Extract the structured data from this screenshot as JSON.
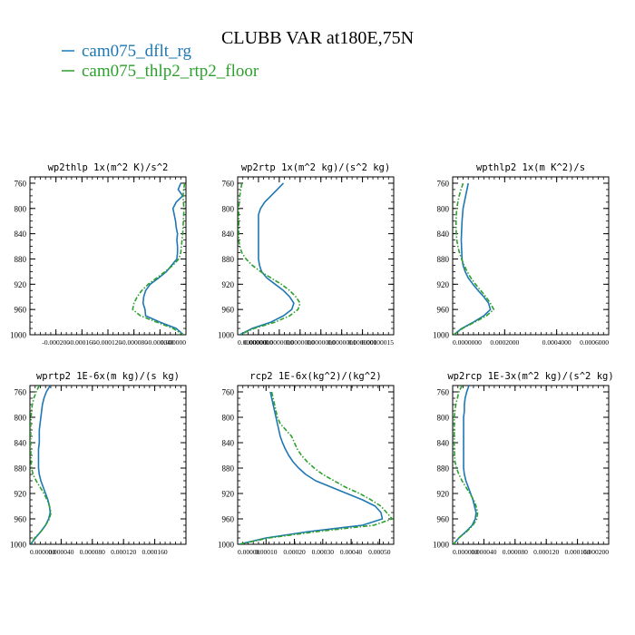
{
  "title": "CLUBB VAR at180E,75N",
  "legend": [
    {
      "name": "cam075_dflt_rg",
      "color": "#1f77b4"
    },
    {
      "name": "cam075_thlp2_rtp2_floor",
      "color": "#2ca02c"
    }
  ],
  "chart_data": [
    {
      "type": "line",
      "title": "wp2thlp   1x(m^2 K)/s^2",
      "xlim": [
        -0.00024,
        0.0
      ],
      "xticks": [
        -0.0002,
        -0.00016,
        -0.00012,
        -8e-05,
        -4e-05,
        0.0
      ],
      "xtick_labels": [
        "-0.000200",
        "-0.000160",
        "-0.000120",
        "-0.000080",
        "-0.000040",
        "0.000000"
      ],
      "ylim": [
        1000,
        750
      ],
      "yticks": [
        760,
        800,
        840,
        880,
        920,
        960,
        1000
      ],
      "grid": false,
      "y": [
        760,
        770,
        780,
        790,
        800,
        810,
        820,
        830,
        840,
        850,
        860,
        870,
        880,
        890,
        900,
        910,
        920,
        930,
        940,
        950,
        960,
        970,
        980,
        990,
        1000
      ],
      "series": [
        {
          "name": "cam075_dflt_rg",
          "color": "#1f77b4",
          "dash": "",
          "values": [
            -8e-06,
            -1.2e-05,
            -5e-06,
            -1.5e-05,
            -2e-05,
            -1.8e-05,
            -1.6e-05,
            -1.5e-05,
            -1.3e-05,
            -1.4e-05,
            -1.3e-05,
            -1.3e-05,
            -1.4e-05,
            -2.2e-05,
            -3e-05,
            -4.2e-05,
            -5.5e-05,
            -6.2e-05,
            -6.5e-05,
            -6.6e-05,
            -6.3e-05,
            -6.2e-05,
            -4e-05,
            -1.5e-05,
            -4e-06
          ]
        },
        {
          "name": "cam075_thlp2_rtp2_floor",
          "color": "#2ca02c",
          "dash": "5 2 1.5 2",
          "values": [
            -2e-06,
            -3.5e-06,
            -4.5e-06,
            -4e-06,
            -3e-06,
            -3.5e-06,
            -4e-06,
            -4.5e-06,
            -5e-06,
            -6e-06,
            -7e-06,
            -8e-06,
            -1.1e-05,
            -2e-05,
            -3.2e-05,
            -4.5e-05,
            -5.8e-05,
            -6.8e-05,
            -7.5e-05,
            -8e-05,
            -8.2e-05,
            -7e-05,
            -4.5e-05,
            -2e-05,
            -4e-06
          ]
        }
      ]
    },
    {
      "type": "line",
      "title": "wp2rtp   1x(m^2 kg)/(s^2 kg)",
      "xlim": [
        0.0,
        1.5e-07
      ],
      "xticks": [
        0.0,
        2e-08,
        4e-08,
        6e-08,
        8e-08,
        1e-07,
        1.2e-07,
        1.5e-07
      ],
      "xtick_labels": [
        "0.0000000",
        "0.0000000",
        "0.0000000",
        "0.0000000",
        "0.0000000",
        "0.0000001",
        "0.0000001",
        "0.00000015"
      ],
      "ylim": [
        1000,
        750
      ],
      "yticks": [
        760,
        800,
        840,
        880,
        920,
        960,
        1000
      ],
      "grid": false,
      "y": [
        760,
        770,
        780,
        790,
        800,
        810,
        820,
        830,
        840,
        850,
        860,
        870,
        880,
        890,
        900,
        910,
        920,
        930,
        940,
        950,
        960,
        970,
        980,
        990,
        1000
      ],
      "series": [
        {
          "name": "cam075_dflt_rg",
          "color": "#1f77b4",
          "dash": "",
          "values": [
            4.4e-08,
            3.8e-08,
            3.2e-08,
            2.6e-08,
            2.2e-08,
            2e-08,
            2e-08,
            2e-08,
            2e-08,
            2e-08,
            2e-08,
            2e-08,
            2e-08,
            2.1e-08,
            2.3e-08,
            2.8e-08,
            3.6e-08,
            4.4e-08,
            5e-08,
            5.4e-08,
            5.2e-08,
            4.4e-08,
            3.2e-08,
            1.4e-08,
            2e-09
          ]
        },
        {
          "name": "cam075_thlp2_rtp2_floor",
          "color": "#2ca02c",
          "dash": "5 2 1.5 2",
          "values": [
            4e-09,
            3e-09,
            2e-09,
            1.5e-09,
            1e-09,
            1e-09,
            1e-09,
            1e-09,
            1e-09,
            1e-09,
            2e-09,
            4e-09,
            8e-09,
            1.4e-08,
            2.2e-08,
            3.2e-08,
            4.2e-08,
            5e-08,
            5.6e-08,
            6e-08,
            5.8e-08,
            5e-08,
            3.6e-08,
            1.6e-08,
            2e-09
          ]
        }
      ]
    },
    {
      "type": "line",
      "title": "wpthlp2   1x(m K^2)/s",
      "xlim": [
        0.0,
        0.0006
      ],
      "xticks": [
        0.0,
        0.0002,
        0.0004,
        0.0006
      ],
      "xtick_labels": [
        "0.0000000",
        "0.0002000",
        "0.0004000",
        "0.0006000"
      ],
      "ylim": [
        1000,
        750
      ],
      "yticks": [
        760,
        800,
        840,
        880,
        920,
        960,
        1000
      ],
      "grid": false,
      "y": [
        760,
        770,
        780,
        790,
        800,
        810,
        820,
        830,
        840,
        850,
        860,
        870,
        880,
        890,
        900,
        910,
        920,
        930,
        940,
        950,
        960,
        970,
        980,
        990,
        1000
      ],
      "series": [
        {
          "name": "cam075_dflt_rg",
          "color": "#1f77b4",
          "dash": "",
          "values": [
            6e-05,
            5.5e-05,
            5e-05,
            4.5e-05,
            4e-05,
            3.8e-05,
            3.6e-05,
            3.5e-05,
            3.4e-05,
            3.3e-05,
            3.4e-05,
            3.5e-05,
            3.6e-05,
            4e-05,
            4.8e-05,
            6e-05,
            7.8e-05,
            9.8e-05,
            0.00012,
            0.000138,
            0.000145,
            0.00012,
            8e-05,
            3.5e-05,
            4e-06
          ]
        },
        {
          "name": "cam075_thlp2_rtp2_floor",
          "color": "#2ca02c",
          "dash": "5 2 1.5 2",
          "values": [
            4e-05,
            3.2e-05,
            2.5e-05,
            2e-05,
            1.6e-05,
            1.4e-05,
            1.3e-05,
            1.3e-05,
            1.4e-05,
            1.6e-05,
            2e-05,
            2.6e-05,
            3.4e-05,
            4.4e-05,
            5.6e-05,
            7e-05,
            8.8e-05,
            0.000108,
            0.000128,
            0.000145,
            0.000158,
            0.00013,
            8.5e-05,
            3.8e-05,
            4e-06
          ]
        }
      ]
    },
    {
      "type": "line",
      "title": "wprtp2   1E-6x(m kg)/(s kg)",
      "xlim": [
        0.0,
        0.0002
      ],
      "xticks": [
        0.0,
        4e-05,
        8e-05,
        0.00012,
        0.00016
      ],
      "xtick_labels": [
        "0.000000",
        "0.000040",
        "0.000080",
        "0.000120",
        "0.000160"
      ],
      "ylim": [
        1000,
        750
      ],
      "yticks": [
        760,
        800,
        840,
        880,
        920,
        960,
        1000
      ],
      "grid": false,
      "y": [
        750,
        760,
        770,
        780,
        790,
        800,
        810,
        820,
        830,
        840,
        850,
        860,
        870,
        880,
        890,
        900,
        910,
        920,
        930,
        940,
        950,
        960,
        970,
        980,
        990,
        1000
      ],
      "series": [
        {
          "name": "cam075_dflt_rg",
          "color": "#1f77b4",
          "dash": "",
          "values": [
            2.6e-05,
            2.1e-05,
            1.8e-05,
            1.6e-05,
            1.5e-05,
            1.4e-05,
            1.3e-05,
            1.2e-05,
            1.2e-05,
            1.2e-05,
            1.1e-05,
            1.1e-05,
            1.1e-05,
            1.1e-05,
            1.2e-05,
            1.4e-05,
            1.7e-05,
            2e-05,
            2.3e-05,
            2.5e-05,
            2.6e-05,
            2.4e-05,
            2e-05,
            1.4e-05,
            7e-06,
            1e-06
          ]
        },
        {
          "name": "cam075_thlp2_rtp2_floor",
          "color": "#2ca02c",
          "dash": "5 2 1.5 2",
          "values": [
            1.2e-05,
            8e-06,
            5e-06,
            3e-06,
            2e-06,
            1.5e-06,
            1e-06,
            1e-06,
            1e-06,
            1e-06,
            1e-06,
            1.2e-06,
            1.5e-06,
            2e-06,
            4e-06,
            8e-06,
            1.3e-05,
            1.8e-05,
            2.2e-05,
            2.5e-05,
            2.7e-05,
            2.5e-05,
            2e-05,
            1.4e-05,
            6e-06,
            1e-06
          ]
        }
      ]
    },
    {
      "type": "line",
      "title": "rcp2   1E-6x(kg^2)/(kg^2)",
      "xlim": [
        0.0,
        0.00055
      ],
      "xticks": [
        0.0,
        0.0001,
        0.0002,
        0.0003,
        0.0004,
        0.0005
      ],
      "xtick_labels": [
        "0.00000",
        "0.00010",
        "0.00020",
        "0.00030",
        "0.00040",
        "0.00050"
      ],
      "ylim": [
        1000,
        750
      ],
      "yticks": [
        760,
        800,
        840,
        880,
        920,
        960,
        1000
      ],
      "grid": false,
      "y": [
        760,
        770,
        780,
        790,
        800,
        810,
        820,
        830,
        840,
        850,
        860,
        870,
        880,
        890,
        900,
        910,
        920,
        930,
        940,
        950,
        960,
        970,
        980,
        990,
        1000
      ],
      "series": [
        {
          "name": "cam075_dflt_rg",
          "color": "#1f77b4",
          "dash": "",
          "values": [
            0.000115,
            0.00012,
            0.000125,
            0.00013,
            0.000135,
            0.00014,
            0.000145,
            0.00015,
            0.000158,
            0.000168,
            0.00018,
            0.000195,
            0.000215,
            0.00024,
            0.000275,
            0.00033,
            0.000385,
            0.00044,
            0.000485,
            0.000505,
            0.00051,
            0.00044,
            0.00025,
            0.0001,
            5e-06
          ]
        },
        {
          "name": "cam075_thlp2_rtp2_floor",
          "color": "#2ca02c",
          "dash": "5 2 1.5 2",
          "values": [
            0.00012,
            0.000125,
            0.00013,
            0.000135,
            0.00014,
            0.00015,
            0.00017,
            0.00019,
            0.0002,
            0.00021,
            0.000225,
            0.000245,
            0.00027,
            0.0003,
            0.00034,
            0.00038,
            0.00043,
            0.00047,
            0.000505,
            0.000525,
            0.000545,
            0.00048,
            0.00028,
            0.00011,
            5e-06
          ]
        }
      ]
    },
    {
      "type": "line",
      "title": "wp2rcp   1E-3x(m^2 kg)/(s^2 kg)",
      "xlim": [
        0.0,
        0.0002
      ],
      "xticks": [
        0.0,
        4e-05,
        8e-05,
        0.00012,
        0.00016,
        0.0002
      ],
      "xtick_labels": [
        "0.000000",
        "0.000040",
        "0.000080",
        "0.000120",
        "0.000160",
        "0.000200"
      ],
      "ylim": [
        1000,
        750
      ],
      "yticks": [
        760,
        800,
        840,
        880,
        920,
        960,
        1000
      ],
      "grid": false,
      "y": [
        750,
        760,
        770,
        780,
        790,
        800,
        810,
        820,
        830,
        840,
        850,
        860,
        870,
        880,
        890,
        900,
        910,
        920,
        930,
        940,
        950,
        960,
        970,
        980,
        990,
        1000
      ],
      "series": [
        {
          "name": "cam075_dflt_rg",
          "color": "#1f77b4",
          "dash": "",
          "values": [
            2.1e-05,
            1.8e-05,
            1.6e-05,
            1.5e-05,
            1.5e-05,
            1.4e-05,
            1.4e-05,
            1.4e-05,
            1.4e-05,
            1.4e-05,
            1.4e-05,
            1.4e-05,
            1.4e-05,
            1.4e-05,
            1.5e-05,
            1.7e-05,
            2e-05,
            2.3e-05,
            2.6e-05,
            2.8e-05,
            3e-05,
            2.9e-05,
            2.5e-05,
            1.7e-05,
            8e-06,
            1e-06
          ]
        },
        {
          "name": "cam075_thlp2_rtp2_floor",
          "color": "#2ca02c",
          "dash": "5 2 1.5 2",
          "values": [
            1.2e-05,
            8e-06,
            6e-06,
            4e-06,
            3e-06,
            2e-06,
            2e-06,
            2e-06,
            2e-06,
            2e-06,
            2e-06,
            2.5e-06,
            3e-06,
            5e-06,
            8e-06,
            1.2e-05,
            1.7e-05,
            2.2e-05,
            2.7e-05,
            3e-05,
            3.2e-05,
            3.1e-05,
            2.6e-05,
            1.8e-05,
            8e-06,
            1e-06
          ]
        }
      ]
    }
  ]
}
